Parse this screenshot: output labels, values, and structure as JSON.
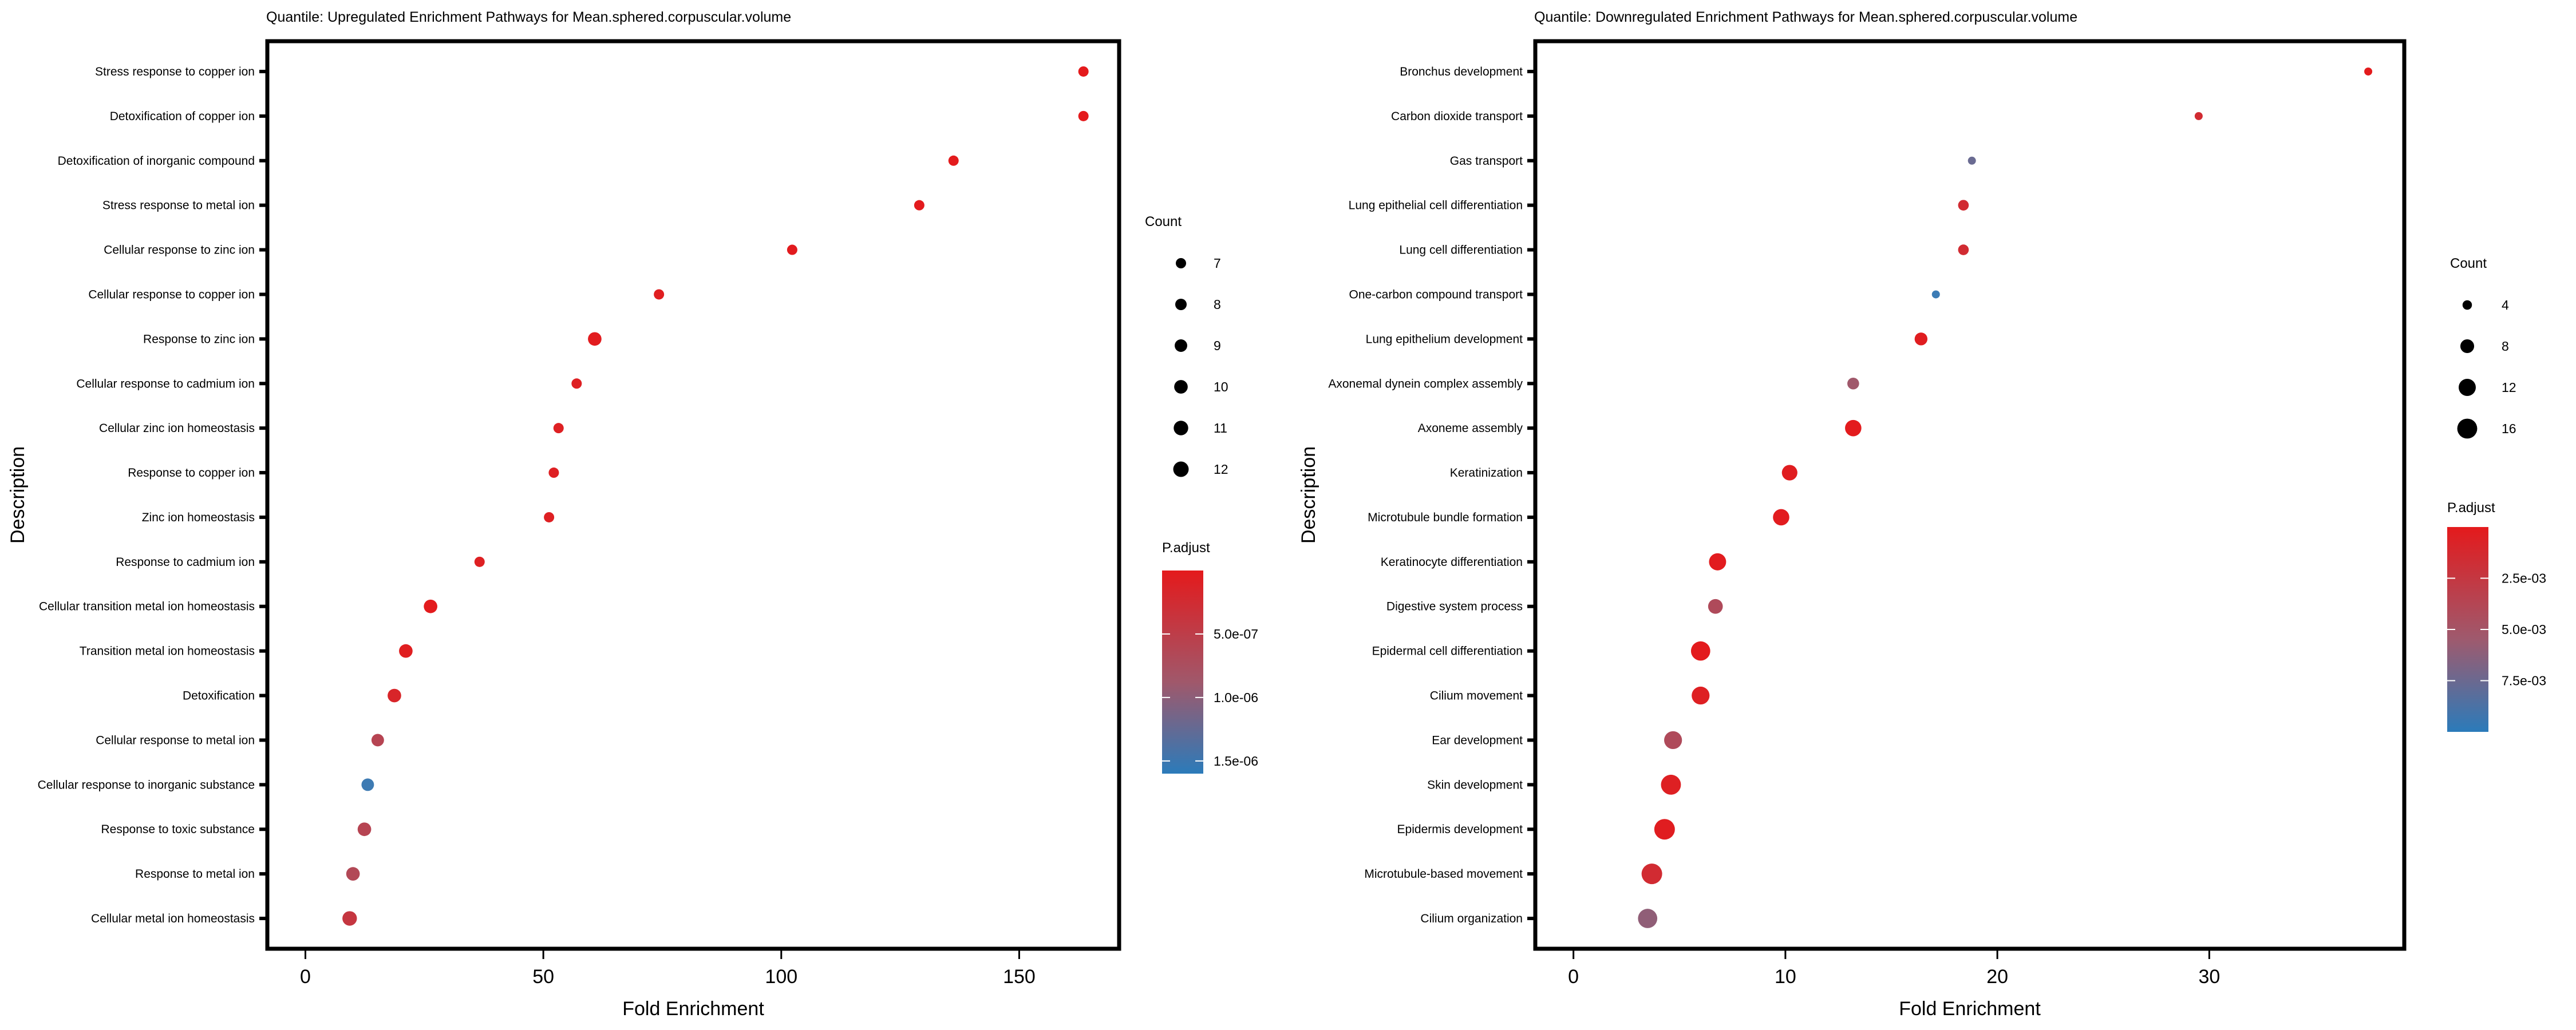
{
  "chart_data": [
    {
      "type": "scatter",
      "id": "upregulated",
      "title": "Quantile: Upregulated Enrichment Pathways for Mean.sphered.corpuscular.volume",
      "xlabel": "Fold Enrichment",
      "ylabel": "Description",
      "xlim": [
        -8,
        171
      ],
      "xticks": [
        0,
        50,
        100,
        150
      ],
      "grid": false,
      "categories": [
        "Stress response to copper ion",
        "Detoxification of copper ion",
        "Detoxification of inorganic compound",
        "Stress response to metal ion",
        "Cellular response to zinc ion",
        "Cellular response to copper ion",
        "Response to zinc ion",
        "Cellular response to cadmium ion",
        "Cellular zinc ion homeostasis",
        "Response to copper ion",
        "Zinc ion homeostasis",
        "Response to cadmium ion",
        "Cellular transition metal ion homeostasis",
        "Transition metal ion homeostasis",
        "Detoxification",
        "Cellular response to metal ion",
        "Cellular response to inorganic substance",
        "Response to toxic substance",
        "Response to metal ion",
        "Cellular metal ion homeostasis"
      ],
      "fold_enrichment": [
        163.5,
        163.5,
        136.2,
        129.0,
        102.3,
        74.3,
        60.8,
        57.0,
        53.2,
        52.2,
        51.2,
        36.6,
        26.3,
        21.1,
        18.7,
        15.2,
        13.1,
        12.4,
        10.0,
        9.3
      ],
      "count": [
        7,
        7,
        7,
        7,
        7,
        7,
        10,
        7,
        7,
        7,
        7,
        7,
        10,
        10,
        10,
        9,
        9,
        10,
        10,
        11
      ],
      "p_adjust": [
        5e-09,
        5e-09,
        1e-08,
        1e-08,
        2e-08,
        5e-08,
        3e-08,
        8e-08,
        8e-08,
        8e-08,
        8e-08,
        8e-08,
        1e-08,
        5e-08,
        1.5e-07,
        6e-07,
        1.55e-06,
        6e-07,
        6.5e-07,
        4e-07
      ],
      "size_legend": {
        "title": "Count",
        "values": [
          7,
          8,
          9,
          10,
          11,
          12
        ],
        "labels": [
          "7",
          "8",
          "9",
          "10",
          "11",
          "12"
        ]
      },
      "color_legend": {
        "title": "P.adjust",
        "range": [
          0,
          1.6e-06
        ],
        "ticks": [
          5e-07,
          1e-06,
          1.5e-06
        ],
        "labels": [
          "5.0e-07",
          "1.0e-06",
          "1.5e-06"
        ],
        "low_color": "#e41a1c",
        "high_color": "#377eb8"
      }
    },
    {
      "type": "scatter",
      "id": "downregulated",
      "title": "Quantile: Downregulated Enrichment Pathways for Mean.sphered.corpuscular.volume",
      "xlabel": "Fold Enrichment",
      "ylabel": "Description",
      "xlim": [
        -1.8,
        39.2
      ],
      "xticks": [
        0,
        10,
        20,
        30
      ],
      "grid": false,
      "categories": [
        "Bronchus development",
        "Carbon dioxide transport",
        "Gas transport",
        "Lung epithelial cell differentiation",
        "Lung cell differentiation",
        "One-carbon compound transport",
        "Lung epithelium development",
        "Axonemal dynein complex assembly",
        "Axoneme assembly",
        "Keratinization",
        "Microtubule bundle formation",
        "Keratinocyte differentiation",
        "Digestive system process",
        "Epidermal cell differentiation",
        "Cilium movement",
        "Ear development",
        "Skin development",
        "Epidermis development",
        "Microtubule-based movement",
        "Cilium organization"
      ],
      "fold_enrichment": [
        37.5,
        29.5,
        18.8,
        18.4,
        18.4,
        17.1,
        16.4,
        13.2,
        13.2,
        10.2,
        9.8,
        6.8,
        6.7,
        6.0,
        6.0,
        4.7,
        4.6,
        4.3,
        3.7,
        3.5
      ],
      "count": [
        3,
        3,
        3,
        5,
        5,
        3,
        7,
        6,
        11,
        10,
        11,
        12,
        9,
        15,
        13,
        13,
        16,
        17,
        17,
        15
      ],
      "p_adjust": [
        0.0001,
        0.0015,
        0.0078,
        0.0015,
        0.0015,
        0.0098,
        0.0003,
        0.0055,
        0.0001,
        0.0003,
        0.0002,
        0.0002,
        0.0043,
        0.0001,
        0.0005,
        0.0043,
        0.0005,
        0.0003,
        0.0015,
        0.0062
      ],
      "size_legend": {
        "title": "Count",
        "values": [
          4,
          8,
          12,
          16
        ],
        "labels": [
          "4",
          "8",
          "12",
          "16"
        ]
      },
      "color_legend": {
        "title": "P.adjust",
        "range": [
          0,
          0.01
        ],
        "ticks": [
          0.0025,
          0.005,
          0.0075
        ],
        "labels": [
          "2.5e-03",
          "5.0e-03",
          "7.5e-03"
        ],
        "low_color": "#e41a1c",
        "high_color": "#377eb8"
      }
    }
  ]
}
